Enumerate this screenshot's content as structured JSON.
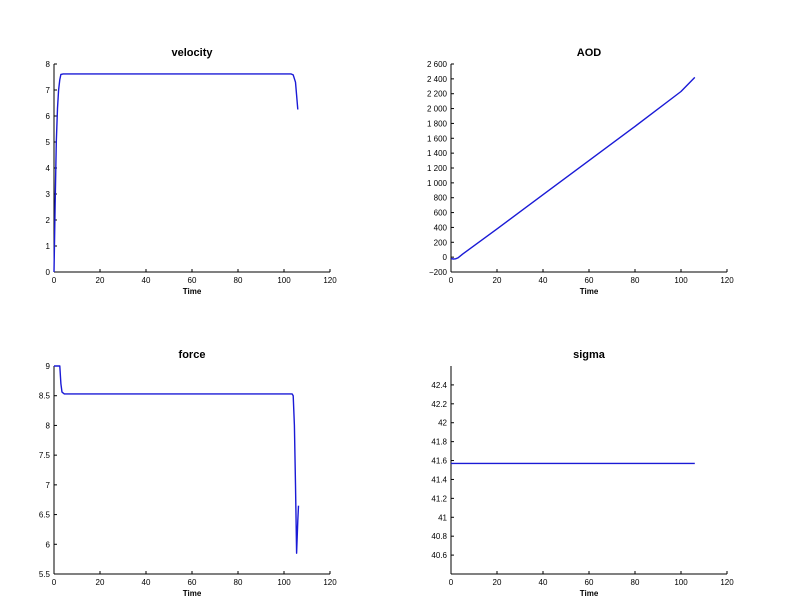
{
  "chart_data": [
    {
      "type": "line",
      "title": "velocity",
      "xlabel": "Time",
      "ylabel": "",
      "xlim": [
        0,
        120
      ],
      "ylim": [
        0,
        8
      ],
      "xticks": [
        0,
        20,
        40,
        60,
        80,
        100,
        120
      ],
      "xtick_labels": [
        "0",
        "20",
        "40",
        "60",
        "80",
        "100",
        "120"
      ],
      "yticks": [
        0,
        1,
        2,
        3,
        4,
        5,
        6,
        7,
        8
      ],
      "ytick_labels": [
        "0",
        "1",
        "2",
        "3",
        "4",
        "5",
        "6",
        "7",
        "8"
      ],
      "series": [
        {
          "color": "#1a1ad6",
          "x": [
            0,
            0.5,
            1,
            1.5,
            2,
            2.5,
            3,
            4,
            5,
            20,
            60,
            100,
            103,
            104,
            105,
            105.5,
            106
          ],
          "y": [
            0,
            2.5,
            5.0,
            6.3,
            7.0,
            7.4,
            7.6,
            7.62,
            7.62,
            7.62,
            7.62,
            7.62,
            7.62,
            7.58,
            7.3,
            6.8,
            6.25
          ]
        }
      ]
    },
    {
      "type": "line",
      "title": "AOD",
      "xlabel": "Time",
      "ylabel": "",
      "xlim": [
        0,
        120
      ],
      "ylim": [
        -200,
        2600
      ],
      "xticks": [
        0,
        20,
        40,
        60,
        80,
        100,
        120
      ],
      "xtick_labels": [
        "0",
        "20",
        "40",
        "60",
        "80",
        "100",
        "120"
      ],
      "yticks": [
        -200,
        0,
        200,
        400,
        600,
        800,
        1000,
        1200,
        1400,
        1600,
        1800,
        2000,
        2200,
        2400,
        2600
      ],
      "ytick_labels": [
        "−200",
        "0",
        "200",
        "400",
        "600",
        "800",
        "1 000",
        "1 200",
        "1 400",
        "1 600",
        "1 800",
        "2 000",
        "2 200",
        "2 400",
        "2 600"
      ],
      "series": [
        {
          "color": "#1a1ad6",
          "x": [
            0,
            1,
            2,
            3,
            5,
            20,
            40,
            60,
            80,
            100,
            106
          ],
          "y": [
            -20,
            -25,
            -22,
            -10,
            40,
            380,
            840,
            1300,
            1760,
            2230,
            2420
          ]
        }
      ]
    },
    {
      "type": "line",
      "title": "force",
      "xlabel": "Time",
      "ylabel": "",
      "xlim": [
        0,
        120
      ],
      "ylim": [
        5.5,
        9
      ],
      "xticks": [
        0,
        20,
        40,
        60,
        80,
        100,
        120
      ],
      "xtick_labels": [
        "0",
        "20",
        "40",
        "60",
        "80",
        "100",
        "120"
      ],
      "yticks": [
        5.5,
        6,
        6.5,
        7,
        7.5,
        8,
        8.5,
        9
      ],
      "ytick_labels": [
        "5.5",
        "6",
        "6.5",
        "7",
        "7.5",
        "8",
        "8.5",
        "9"
      ],
      "series": [
        {
          "color": "#1a1ad6",
          "x": [
            0,
            2.5,
            3,
            3.5,
            4.5,
            20,
            60,
            100,
            103.5,
            104,
            104.5,
            105,
            105.5,
            106,
            106.3
          ],
          "y": [
            9,
            9,
            8.7,
            8.56,
            8.53,
            8.53,
            8.53,
            8.53,
            8.53,
            8.5,
            8.0,
            7.0,
            5.85,
            6.4,
            6.65
          ]
        }
      ]
    },
    {
      "type": "line",
      "title": "sigma",
      "xlabel": "Time",
      "ylabel": "",
      "xlim": [
        0,
        120
      ],
      "ylim": [
        40.4,
        42.6
      ],
      "xticks": [
        0,
        20,
        40,
        60,
        80,
        100,
        120
      ],
      "xtick_labels": [
        "0",
        "20",
        "40",
        "60",
        "80",
        "100",
        "120"
      ],
      "yticks": [
        40.6,
        40.8,
        41,
        41.2,
        41.4,
        41.6,
        41.8,
        42,
        42.2,
        42.4
      ],
      "ytick_labels": [
        "40.6",
        "40.8",
        "41",
        "41.2",
        "41.4",
        "41.6",
        "41.8",
        "42",
        "42.2",
        "42.4"
      ],
      "series": [
        {
          "color": "#1a1ad6",
          "x": [
            0,
            106
          ],
          "y": [
            41.57,
            41.57
          ]
        }
      ]
    }
  ]
}
